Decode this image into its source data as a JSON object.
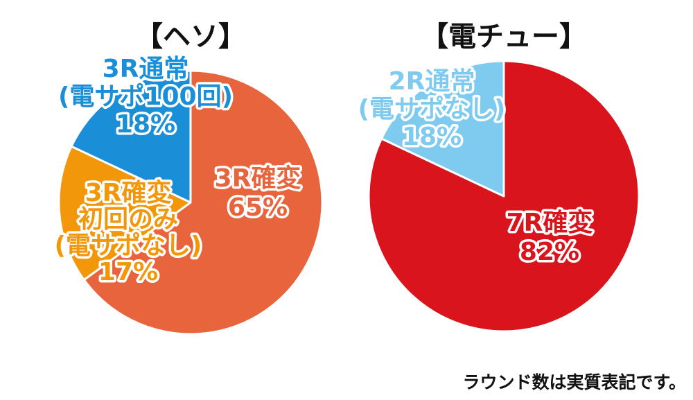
{
  "chart_data": [
    {
      "type": "pie",
      "title": "【ヘソ】",
      "start": "top",
      "direction": "clockwise",
      "slices": [
        {
          "value": 65,
          "label_lines": [
            "3R確変",
            "65%"
          ],
          "color": "#e8643c",
          "text_color": "#e8643c"
        },
        {
          "value": 17,
          "label_lines": [
            "3R確変",
            "初回のみ",
            "(電サポなし)",
            "17%"
          ],
          "color": "#f2960a",
          "text_color": "#f2960a"
        },
        {
          "value": 18,
          "label_lines": [
            "3R通常",
            "(電サポ100回)",
            "18%"
          ],
          "color": "#1a8fd8",
          "text_color": "#1a8fd8"
        }
      ]
    },
    {
      "type": "pie",
      "title": "【電チュー】",
      "start": "top",
      "direction": "clockwise",
      "slices": [
        {
          "value": 82,
          "label_lines": [
            "7R確変",
            "82%"
          ],
          "color": "#d9141c",
          "text_color": "#d9141c"
        },
        {
          "value": 18,
          "label_lines": [
            "2R通常",
            "(電サポなし)",
            "18%"
          ],
          "color": "#7fcbef",
          "text_color": "#7fcbef"
        }
      ]
    }
  ],
  "footnote": "ラウンド数は実質表記です。"
}
